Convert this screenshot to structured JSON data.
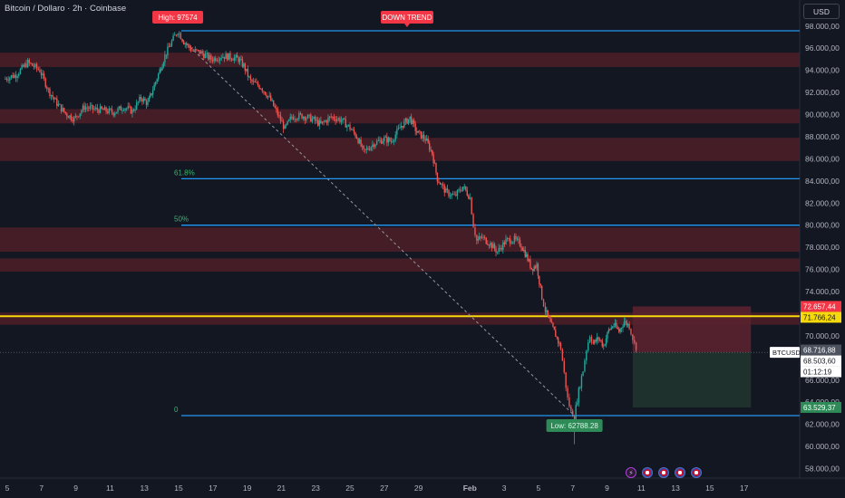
{
  "header": {
    "symbol_title": "Bitcoin / Dollaro · 2h · Coinbase",
    "currency_button": "USD"
  },
  "colors": {
    "background": "#131722",
    "up": "#26a69a",
    "down": "#ef5350",
    "level_line": "#2196f3",
    "yellow_line": "#f5d90a",
    "zone_fill": "#4d1e28",
    "fib_label": "#3cb371",
    "risk_fill": "#5b2230",
    "reward_fill": "#20332e"
  },
  "chart_data": {
    "type": "candlestick",
    "symbol": "BTCUSD",
    "interval": "2h",
    "exchange": "Coinbase",
    "ylim": [
      57000,
      99500
    ],
    "y_ticks": [
      98000,
      96000,
      94000,
      92000,
      90000,
      88000,
      86000,
      84000,
      82000,
      80000,
      78000,
      76000,
      74000,
      72000,
      70000,
      66000,
      64000,
      62000,
      60000,
      58000
    ],
    "y_tick_labels": [
      "98.000,00",
      "96.000,00",
      "94.000,00",
      "92.000,00",
      "90.000,00",
      "88.000,00",
      "86.000,00",
      "84.000,00",
      "82.000,00",
      "80.000,00",
      "78.000,00",
      "76.000,00",
      "74.000,00",
      "72.000,00",
      "70.000,00",
      "66.000,00",
      "64.000,00",
      "62.000,00",
      "60.000,00",
      "58.000,00"
    ],
    "x_ticks": [
      "5",
      "7",
      "9",
      "11",
      "13",
      "15",
      "17",
      "19",
      "21",
      "23",
      "25",
      "27",
      "29",
      "Feb",
      "3",
      "5",
      "7",
      "9",
      "11",
      "13",
      "15",
      "17"
    ],
    "x_tick_days": [
      5,
      7,
      9,
      11,
      13,
      15,
      17,
      19,
      21,
      23,
      25,
      27,
      29,
      32,
      34,
      36,
      38,
      40,
      42,
      44,
      46,
      48
    ],
    "price_path": [
      [
        4.8,
        93200
      ],
      [
        5.5,
        93600
      ],
      [
        6.2,
        94700
      ],
      [
        6.9,
        94000
      ],
      [
        7.4,
        92200
      ],
      [
        7.9,
        91000
      ],
      [
        8.4,
        90100
      ],
      [
        8.9,
        89600
      ],
      [
        9.5,
        90700
      ],
      [
        10.0,
        90500
      ],
      [
        10.6,
        90400
      ],
      [
        11.2,
        90200
      ],
      [
        11.8,
        90700
      ],
      [
        12.3,
        90300
      ],
      [
        12.8,
        91500
      ],
      [
        13.2,
        91000
      ],
      [
        13.5,
        92300
      ],
      [
        13.9,
        94000
      ],
      [
        14.2,
        95300
      ],
      [
        14.6,
        96600
      ],
      [
        14.95,
        97574
      ],
      [
        15.3,
        96600
      ],
      [
        15.8,
        95800
      ],
      [
        16.3,
        95600
      ],
      [
        16.9,
        95000
      ],
      [
        17.5,
        95300
      ],
      [
        18.1,
        95200
      ],
      [
        18.5,
        95000
      ],
      [
        18.8,
        94400
      ],
      [
        19.2,
        93000
      ],
      [
        19.8,
        92500
      ],
      [
        20.3,
        91500
      ],
      [
        20.7,
        90300
      ],
      [
        21.2,
        88700
      ],
      [
        21.6,
        89800
      ],
      [
        22.2,
        89900
      ],
      [
        22.8,
        89600
      ],
      [
        23.3,
        89100
      ],
      [
        23.9,
        89800
      ],
      [
        24.5,
        89500
      ],
      [
        25.0,
        88800
      ],
      [
        25.4,
        88000
      ],
      [
        25.8,
        86600
      ],
      [
        26.4,
        87400
      ],
      [
        27.0,
        87800
      ],
      [
        27.4,
        87600
      ],
      [
        28.0,
        89000
      ],
      [
        28.5,
        89700
      ],
      [
        28.9,
        88400
      ],
      [
        29.4,
        87800
      ],
      [
        29.8,
        86500
      ],
      [
        30.1,
        84200
      ],
      [
        30.6,
        83000
      ],
      [
        31.1,
        82600
      ],
      [
        31.6,
        83500
      ],
      [
        32.0,
        82500
      ],
      [
        32.2,
        80000
      ],
      [
        32.4,
        78600
      ],
      [
        32.7,
        78900
      ],
      [
        33.2,
        78300
      ],
      [
        33.6,
        77600
      ],
      [
        34.1,
        78600
      ],
      [
        34.6,
        78700
      ],
      [
        35.0,
        78200
      ],
      [
        35.3,
        77200
      ],
      [
        35.6,
        76100
      ],
      [
        35.9,
        76400
      ],
      [
        36.2,
        73500
      ],
      [
        36.4,
        72300
      ],
      [
        36.7,
        71100
      ],
      [
        37.0,
        70100
      ],
      [
        37.3,
        68900
      ],
      [
        37.5,
        66600
      ],
      [
        37.7,
        64300
      ],
      [
        37.9,
        63100
      ],
      [
        38.1,
        62788
      ],
      [
        38.35,
        65000
      ],
      [
        38.6,
        66900
      ],
      [
        38.8,
        68800
      ],
      [
        39.0,
        70100
      ],
      [
        39.2,
        69300
      ],
      [
        39.5,
        69800
      ],
      [
        39.8,
        69100
      ],
      [
        40.1,
        70500
      ],
      [
        40.4,
        71000
      ],
      [
        40.7,
        70400
      ],
      [
        41.0,
        71300
      ],
      [
        41.3,
        70900
      ],
      [
        41.5,
        69800
      ],
      [
        41.7,
        68716
      ]
    ],
    "levels": [
      {
        "price": 97574,
        "label": "High: 97574"
      },
      {
        "price": 84200,
        "label": "61.8%"
      },
      {
        "price": 80000,
        "label": "50%"
      },
      {
        "price": 62788,
        "label": "0"
      }
    ],
    "yellow_level": 71766.24,
    "zones": [
      [
        94300,
        95600
      ],
      [
        89200,
        90500
      ],
      [
        85800,
        87900
      ],
      [
        77600,
        79800
      ],
      [
        75800,
        77000
      ],
      [
        71000,
        72100
      ]
    ],
    "trendline": {
      "from": [
        15.2,
        96800
      ],
      "to": [
        38.1,
        62788
      ]
    },
    "position": {
      "x_from": 41.5,
      "x_to": 48.4,
      "entry": 68503.6,
      "stop": 72657.44,
      "target": 63529.37
    },
    "annotations": [
      {
        "text": "High: 97574",
        "price": 97574
      },
      {
        "text": "DOWN TREND"
      },
      {
        "text": "Low: 62788.28",
        "price": 62788.28
      }
    ],
    "price_tags": [
      {
        "text": "72.657,44",
        "price": 72657.44,
        "style": "stop"
      },
      {
        "text": "71.766,24",
        "price": 71766.24,
        "style": "yellow"
      },
      {
        "text": "68.716,88",
        "price": 68716.88,
        "style": "gray"
      },
      {
        "text": "68.503,60",
        "price": 68503.6,
        "style": "white"
      },
      {
        "text": "01:12:19",
        "price": 67500,
        "style": "white"
      },
      {
        "text": "63.529,37",
        "price": 63529.37,
        "style": "target"
      }
    ],
    "symbol_label": "BTCUSD"
  }
}
